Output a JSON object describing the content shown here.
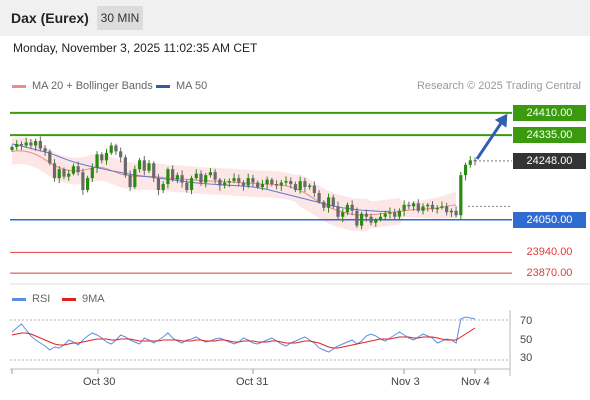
{
  "header": {
    "instrument": "Dax (Eurex)",
    "timeframe": "30 MIN"
  },
  "datetime": "Monday, November 3, 2025 11:02:35 AM CET",
  "legend": {
    "ma20": "MA 20 + Bollinger Bands",
    "ma50": "MA 50",
    "credit": "Research © 2025 Trading Central"
  },
  "colors": {
    "resistance": "#3b9a10",
    "support": "#2f6bd1",
    "target": "#e23b3b",
    "bullish": "#2a8a12",
    "bearish": "#6a6a6a",
    "band": "#fde2e2",
    "ma20": "#f08a8a",
    "ma50": "#5a7bd0",
    "rsi": "#5a8fe0",
    "rsi_ma": "#e02020",
    "arrow": "#2e5fb5"
  },
  "chart_data": [
    {
      "type": "candlestick",
      "ylim": [
        23830,
        24470
      ],
      "x_ticks": [
        "Oct 30",
        "Oct 31",
        "Nov 3",
        "Nov 4"
      ],
      "levels": [
        {
          "label": "24410.00",
          "value": 24410,
          "kind": "resistance"
        },
        {
          "label": "24335.00",
          "value": 24335,
          "kind": "resistance"
        },
        {
          "label": "24248.00",
          "value": 24248,
          "kind": "last"
        },
        {
          "label": "24050.00",
          "value": 24050,
          "kind": "support"
        },
        {
          "label": "23940.00",
          "value": 23940,
          "kind": "target"
        },
        {
          "label": "23870.00",
          "value": 23870,
          "kind": "target"
        }
      ],
      "close": [
        24295,
        24305,
        24300,
        24310,
        24300,
        24315,
        24290,
        24280,
        24240,
        24190,
        24220,
        24195,
        24205,
        24230,
        24210,
        24150,
        24190,
        24225,
        24270,
        24250,
        24275,
        24300,
        24280,
        24260,
        24200,
        24160,
        24220,
        24250,
        24215,
        24240,
        24190,
        24150,
        24170,
        24220,
        24185,
        24200,
        24175,
        24150,
        24190,
        24205,
        24175,
        24200,
        24210,
        24185,
        24165,
        24175,
        24180,
        24190,
        24175,
        24165,
        24190,
        24175,
        24160,
        24170,
        24185,
        24170,
        24165,
        24175,
        24180,
        24170,
        24150,
        24180,
        24160,
        24165,
        24140,
        24110,
        24090,
        24125,
        24095,
        24060,
        24075,
        24100,
        24080,
        24030,
        24070,
        24060,
        24040,
        24050,
        24060,
        24070,
        24075,
        24060,
        24080,
        24100,
        24095,
        24105,
        24080,
        24095,
        24100,
        24085,
        24090,
        24095,
        24075,
        24080,
        24065,
        24200,
        24235,
        24250,
        24248
      ],
      "ma20": [
        24280,
        24282,
        24282,
        24280,
        24276,
        24270,
        24262,
        24252,
        24242,
        24232,
        24226,
        24220,
        24216,
        24214,
        24214,
        24216,
        24220,
        24224,
        24226,
        24226,
        24222,
        24216,
        24210,
        24204,
        24200,
        24198,
        24196,
        24196,
        24196,
        24196,
        24195,
        24194,
        24192,
        24190,
        24189,
        24188,
        24187,
        24186,
        24185,
        24183,
        24182,
        24181,
        24180,
        24180,
        24179,
        24178,
        24177,
        24176,
        24175,
        24174,
        24173,
        24172,
        24171,
        24170,
        24170,
        24169,
        24168,
        24166,
        24164,
        24160,
        24155,
        24148,
        24140,
        24130,
        24120,
        24110,
        24100,
        24092,
        24086,
        24080,
        24076,
        24072,
        24068,
        24066,
        24066,
        24066,
        24067,
        24068,
        24070,
        24072,
        24074,
        24076,
        24078,
        24080,
        24082,
        24084,
        24085,
        24086,
        24087,
        24088,
        24089,
        24092,
        24095,
        24098,
        24100
      ],
      "ma50": [
        24305,
        24302,
        24298,
        24294,
        24290,
        24286,
        24282,
        24278,
        24274,
        24268,
        24262,
        24256,
        24250,
        24245,
        24240,
        24236,
        24232,
        24228,
        24225,
        24222,
        24218,
        24215,
        24212,
        24209,
        24206,
        24203,
        24200,
        24198,
        24196,
        24194,
        24192,
        24190,
        24188,
        24186,
        24184,
        24182,
        24180,
        24178,
        24176,
        24174,
        24172,
        24171,
        24170,
        24169,
        24168,
        24167,
        24166,
        24165,
        24164,
        24163,
        24162,
        24160,
        24158,
        24155,
        24152,
        24148,
        24144,
        24140,
        24136,
        24132,
        24128,
        24124,
        24120,
        24116,
        24112,
        24108,
        24104,
        24100,
        24096,
        24093,
        24090,
        24088,
        24086,
        24084,
        24082,
        24081,
        24080,
        24079,
        24078,
        24078,
        24078
      ]
    },
    {
      "type": "line",
      "ylim": [
        20,
        80
      ],
      "y_ticks": [
        70,
        50,
        30
      ],
      "legend": [
        "RSI",
        "9MA"
      ],
      "rsi": [
        58,
        62,
        66,
        60,
        54,
        50,
        47,
        44,
        40,
        43,
        42,
        45,
        50,
        48,
        45,
        50,
        54,
        57,
        55,
        52,
        48,
        46,
        50,
        55,
        53,
        50,
        48,
        46,
        52,
        50,
        47,
        50,
        53,
        57,
        52,
        49,
        47,
        50,
        51,
        53,
        50,
        48,
        49,
        51,
        52,
        50,
        48,
        46,
        48,
        52,
        50,
        47,
        46,
        48,
        50,
        52,
        49,
        46,
        44,
        47,
        49,
        51,
        53,
        50,
        47,
        42,
        40,
        38,
        41,
        44,
        46,
        48,
        50,
        46,
        49,
        54,
        56,
        54,
        51,
        49,
        52,
        55,
        58,
        55,
        52,
        50,
        53,
        56,
        54,
        52,
        47,
        49,
        51,
        50,
        47,
        71,
        73,
        72,
        71
      ],
      "rsi_ma": [
        55,
        56,
        57,
        57,
        56,
        54,
        52,
        50,
        48,
        46,
        45,
        45,
        46,
        47,
        47,
        48,
        49,
        50,
        51,
        51,
        51,
        50,
        50,
        51,
        51,
        51,
        50,
        49,
        49,
        49,
        49,
        49,
        50,
        50,
        50,
        50,
        49,
        49,
        49,
        50,
        50,
        49,
        49,
        49,
        50,
        50,
        49,
        48,
        48,
        49,
        49,
        49,
        48,
        48,
        48,
        49,
        49,
        48,
        47,
        47,
        47,
        48,
        49,
        49,
        48,
        47,
        45,
        43,
        42,
        42,
        43,
        44,
        45,
        46,
        47,
        48,
        49,
        50,
        51,
        51,
        51,
        52,
        53,
        53,
        53,
        52,
        52,
        53,
        53,
        53,
        52,
        51,
        50,
        50,
        50,
        53,
        56,
        59,
        62
      ]
    }
  ]
}
